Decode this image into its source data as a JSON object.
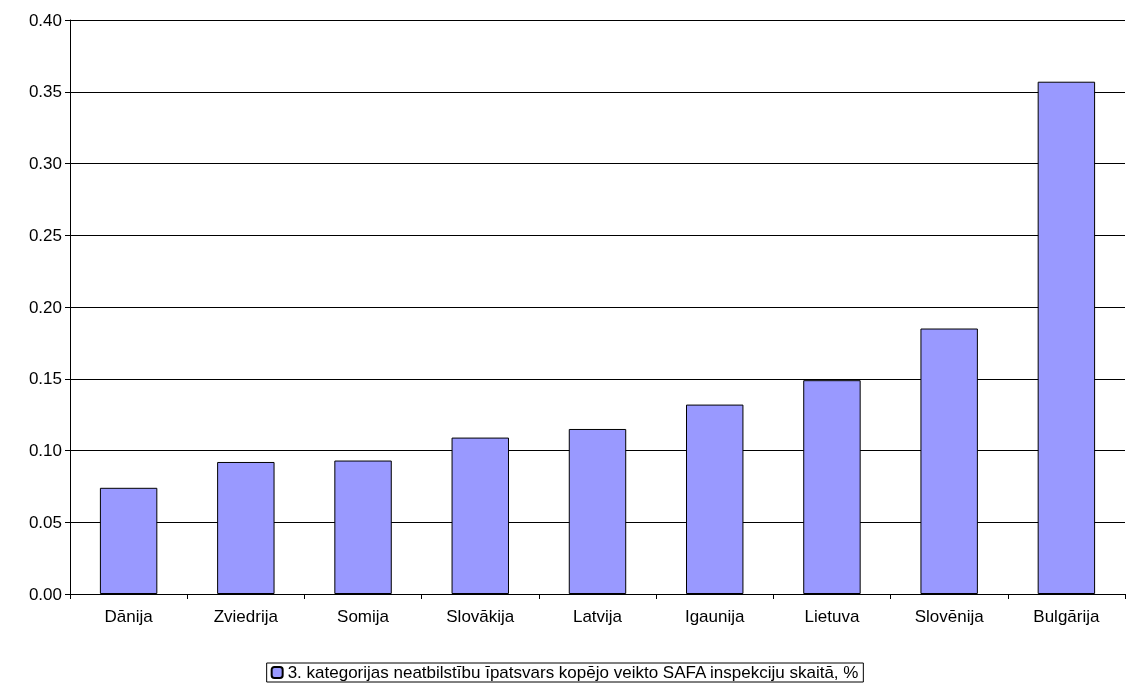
{
  "chart_data": {
    "type": "bar",
    "categories": [
      "Dānija",
      "Zviedrija",
      "Somija",
      "Slovākija",
      "Latvija",
      "Igaunija",
      "Lietuva",
      "Slovēnija",
      "Bulgārija"
    ],
    "series": [
      {
        "name": "3. kategorijas neatbilstību īpatsvars kopējo veikto SAFA inspekciju skaitā, %",
        "color": "#9999ff",
        "values": [
          0.074,
          0.092,
          0.093,
          0.109,
          0.115,
          0.132,
          0.149,
          0.185,
          0.357
        ]
      }
    ],
    "ylim": [
      0,
      0.4
    ],
    "yticks": [
      {
        "value": 0,
        "label": "0.00"
      },
      {
        "value": 0.05,
        "label": "0.05"
      },
      {
        "value": 0.1,
        "label": "0.10"
      },
      {
        "value": 0.15,
        "label": "0.15"
      },
      {
        "value": 0.2,
        "label": "0.20"
      },
      {
        "value": 0.25,
        "label": "0.25"
      },
      {
        "value": 0.3,
        "label": "0.30"
      },
      {
        "value": 0.35,
        "label": "0.35"
      },
      {
        "value": 0.4,
        "label": "0.40"
      }
    ],
    "grid": "y",
    "legend": "bottom"
  }
}
